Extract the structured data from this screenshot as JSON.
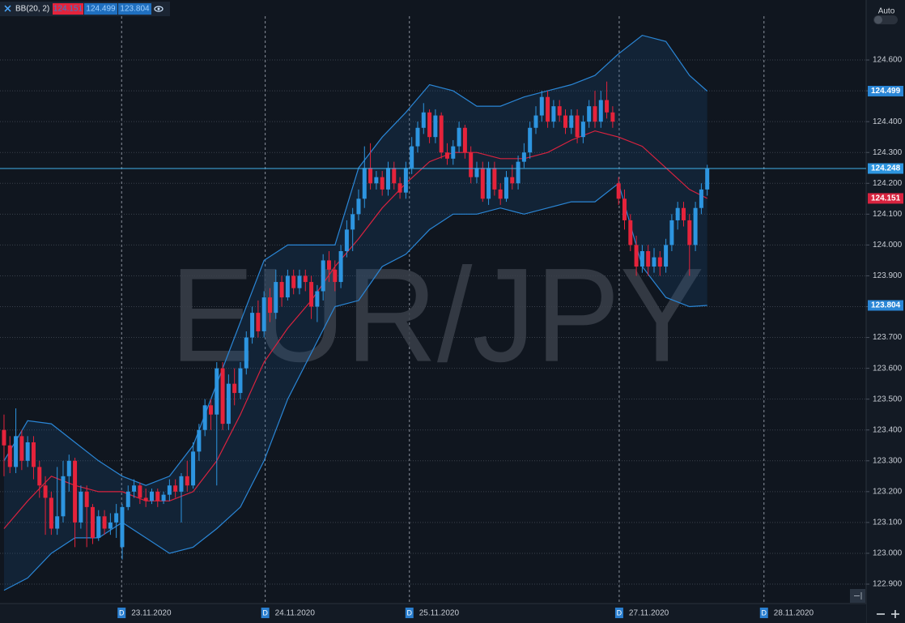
{
  "chart_data": {
    "type": "candlestick",
    "title": "EUR/JPY",
    "indicator": "BB(20, 2)",
    "toolbar_label": "Auto",
    "x_badge": "D",
    "up_color": "#2d95e0",
    "down_color": "#e5233b",
    "x": [
      0,
      1,
      2,
      3,
      4,
      5,
      6,
      7,
      8,
      9,
      10,
      11,
      12,
      13,
      14,
      15,
      16,
      17,
      18,
      19,
      20,
      21,
      22,
      23,
      24,
      25,
      26,
      27,
      28,
      29,
      30,
      31,
      32,
      33,
      34,
      35,
      36,
      37,
      38,
      39,
      40,
      41,
      42,
      43,
      44,
      45,
      46,
      47,
      48,
      49,
      50,
      51,
      52,
      53,
      54,
      55,
      56,
      57,
      58,
      59,
      60,
      61,
      62,
      63,
      64,
      65,
      66,
      67,
      68,
      69,
      70,
      71,
      72,
      73,
      74,
      75,
      76,
      77,
      78,
      79,
      80,
      81,
      82,
      83,
      84,
      85,
      86,
      87,
      88,
      89,
      90,
      91,
      92,
      93,
      94,
      95,
      96,
      97,
      98,
      99,
      100,
      101,
      102,
      103,
      104,
      105,
      106,
      107,
      108,
      109,
      110,
      111,
      112,
      113,
      114,
      115,
      116,
      117,
      118,
      119
    ],
    "open": [
      123.4,
      123.35,
      123.28,
      123.38,
      123.3,
      123.36,
      123.28,
      123.22,
      123.18,
      123.08,
      123.12,
      123.25,
      123.3,
      123.1,
      123.2,
      123.15,
      123.05,
      123.12,
      123.08,
      123.1,
      123.02,
      123.15,
      123.2,
      123.22,
      123.18,
      123.17,
      123.2,
      123.17,
      123.19,
      123.22,
      123.2,
      123.25,
      123.22,
      123.33,
      123.4,
      123.48,
      123.45,
      123.6,
      123.42,
      123.55,
      123.52,
      123.6,
      123.7,
      123.78,
      123.72,
      123.83,
      123.78,
      123.88,
      123.83,
      123.9,
      123.86,
      123.9,
      123.88,
      123.8,
      123.85,
      123.95,
      123.92,
      123.88,
      123.98,
      124.05,
      124.1,
      124.15,
      124.25,
      124.2,
      124.22,
      124.18,
      124.25,
      124.2,
      124.17,
      124.25,
      124.32,
      124.38,
      124.43,
      124.35,
      124.42,
      124.3,
      124.28,
      124.32,
      124.38,
      124.3,
      124.22,
      124.25,
      124.15,
      124.25,
      124.18,
      124.15,
      124.22,
      124.2,
      124.27,
      124.3,
      124.38,
      124.42,
      124.48,
      124.4,
      124.45,
      124.42,
      124.38,
      124.42,
      124.35,
      124.4,
      124.45,
      124.4,
      124.47,
      124.43,
      124.2,
      124.15,
      124.08,
      124.0,
      123.93,
      123.98,
      123.93,
      123.96,
      123.93,
      124.0,
      124.08,
      124.12,
      124.08,
      124.0,
      124.12,
      124.18
    ],
    "high": [
      123.45,
      123.38,
      123.47,
      123.4,
      123.38,
      123.38,
      123.3,
      123.25,
      123.2,
      123.28,
      123.3,
      123.32,
      123.31,
      123.22,
      123.22,
      123.16,
      123.14,
      123.14,
      123.13,
      123.16,
      123.16,
      123.22,
      123.24,
      123.23,
      123.21,
      123.21,
      123.21,
      123.2,
      123.24,
      123.24,
      123.26,
      123.3,
      123.36,
      123.42,
      123.5,
      123.5,
      123.62,
      123.62,
      123.58,
      123.6,
      123.62,
      123.72,
      123.8,
      123.82,
      123.85,
      123.86,
      123.92,
      123.9,
      123.92,
      123.92,
      123.92,
      123.92,
      123.9,
      123.87,
      123.97,
      123.98,
      123.95,
      124.0,
      124.08,
      124.12,
      124.18,
      124.32,
      124.33,
      124.24,
      124.24,
      124.27,
      124.27,
      124.22,
      124.27,
      124.35,
      124.4,
      124.46,
      124.44,
      124.44,
      124.43,
      124.33,
      124.34,
      124.4,
      124.39,
      124.32,
      124.27,
      124.27,
      124.27,
      124.27,
      124.2,
      124.24,
      124.26,
      124.29,
      124.33,
      124.4,
      124.45,
      124.5,
      124.5,
      124.47,
      124.47,
      124.44,
      124.44,
      124.44,
      124.42,
      124.47,
      124.5,
      124.5,
      124.53,
      124.45,
      124.22,
      124.18,
      124.1,
      124.03,
      124.0,
      124.0,
      123.99,
      123.98,
      124.02,
      124.1,
      124.14,
      124.14,
      124.1,
      124.14,
      124.2,
      124.26
    ],
    "low": [
      123.25,
      123.26,
      123.26,
      123.27,
      123.28,
      123.24,
      123.18,
      123.06,
      123.06,
      123.06,
      123.1,
      123.2,
      123.02,
      123.08,
      123.02,
      123.03,
      123.04,
      123.06,
      123.06,
      123.05,
      122.98,
      123.14,
      123.18,
      123.16,
      123.15,
      123.16,
      123.15,
      123.16,
      123.17,
      123.18,
      123.1,
      123.2,
      123.21,
      123.3,
      123.38,
      123.4,
      123.22,
      123.4,
      123.4,
      123.48,
      123.5,
      123.58,
      123.68,
      123.7,
      123.7,
      123.75,
      123.76,
      123.8,
      123.82,
      123.84,
      123.84,
      123.85,
      123.76,
      123.75,
      123.82,
      123.88,
      123.85,
      123.86,
      123.96,
      123.98,
      124.08,
      124.12,
      124.18,
      124.18,
      124.16,
      124.16,
      124.18,
      124.15,
      124.15,
      124.23,
      124.3,
      124.36,
      124.33,
      124.33,
      124.28,
      124.26,
      124.26,
      124.3,
      124.28,
      124.2,
      124.2,
      124.14,
      124.13,
      124.16,
      124.13,
      124.14,
      124.18,
      124.18,
      124.25,
      124.28,
      124.36,
      124.4,
      124.38,
      124.38,
      124.4,
      124.36,
      124.36,
      124.33,
      124.33,
      124.38,
      124.38,
      124.38,
      124.41,
      124.38,
      124.13,
      124.05,
      123.98,
      123.9,
      123.91,
      123.9,
      123.91,
      123.9,
      123.91,
      123.98,
      124.05,
      124.06,
      123.9,
      123.98,
      124.1,
      124.16
    ],
    "close": [
      123.35,
      123.28,
      123.38,
      123.3,
      123.36,
      123.28,
      123.22,
      123.18,
      123.08,
      123.12,
      123.25,
      123.3,
      123.1,
      123.2,
      123.15,
      123.05,
      123.12,
      123.08,
      123.1,
      123.13,
      123.15,
      123.2,
      123.22,
      123.18,
      123.17,
      123.2,
      123.17,
      123.19,
      123.22,
      123.2,
      123.25,
      123.22,
      123.33,
      123.4,
      123.48,
      123.45,
      123.6,
      123.42,
      123.55,
      123.52,
      123.6,
      123.7,
      123.78,
      123.72,
      123.83,
      123.78,
      123.88,
      123.83,
      123.9,
      123.86,
      123.9,
      123.88,
      123.8,
      123.85,
      123.95,
      123.92,
      123.88,
      123.98,
      124.05,
      124.1,
      124.15,
      124.25,
      124.2,
      124.22,
      124.18,
      124.25,
      124.2,
      124.17,
      124.25,
      124.32,
      124.38,
      124.43,
      124.35,
      124.42,
      124.3,
      124.28,
      124.32,
      124.38,
      124.3,
      124.22,
      124.25,
      124.15,
      124.25,
      124.18,
      124.15,
      124.22,
      124.2,
      124.27,
      124.3,
      124.38,
      124.42,
      124.48,
      124.4,
      124.45,
      124.42,
      124.38,
      124.42,
      124.35,
      124.4,
      124.45,
      124.4,
      124.47,
      124.43,
      124.4,
      124.15,
      124.08,
      124.0,
      123.93,
      123.98,
      123.93,
      123.96,
      123.93,
      124.0,
      124.08,
      124.12,
      124.08,
      124.0,
      124.12,
      124.18,
      124.248
    ],
    "series": [
      {
        "color": "#2a86d6",
        "x": [
          0,
          4,
          8,
          12,
          16,
          20,
          24,
          28,
          32,
          36,
          40,
          44,
          48,
          52,
          56,
          60,
          64,
          68,
          72,
          76,
          80,
          84,
          88,
          92,
          96,
          100,
          104,
          108,
          112,
          116,
          119
        ],
        "values": [
          123.3,
          123.43,
          123.42,
          123.36,
          123.3,
          123.25,
          123.22,
          123.25,
          123.35,
          123.55,
          123.75,
          123.95,
          124.0,
          124.0,
          124.0,
          124.25,
          124.35,
          124.43,
          124.52,
          124.5,
          124.45,
          124.45,
          124.48,
          124.5,
          124.52,
          124.55,
          124.62,
          124.68,
          124.66,
          124.55,
          124.499
        ]
      },
      {
        "color": "#d8233f",
        "x": [
          0,
          4,
          8,
          12,
          16,
          20,
          24,
          28,
          32,
          36,
          40,
          44,
          48,
          52,
          56,
          60,
          64,
          68,
          72,
          76,
          80,
          84,
          88,
          92,
          96,
          100,
          104,
          108,
          112,
          116,
          119
        ],
        "values": [
          123.08,
          123.17,
          123.25,
          123.22,
          123.2,
          123.2,
          123.17,
          123.17,
          123.2,
          123.3,
          123.45,
          123.62,
          123.73,
          123.82,
          123.93,
          124.02,
          124.12,
          124.2,
          124.27,
          124.3,
          124.3,
          124.28,
          124.28,
          124.3,
          124.34,
          124.37,
          124.35,
          124.32,
          124.25,
          124.18,
          124.151
        ]
      },
      {
        "color": "#2a86d6",
        "x": [
          0,
          4,
          8,
          12,
          16,
          20,
          24,
          28,
          32,
          36,
          40,
          44,
          48,
          52,
          56,
          60,
          64,
          68,
          72,
          76,
          80,
          84,
          88,
          92,
          96,
          100,
          104,
          108,
          112,
          116,
          119
        ],
        "values": [
          122.88,
          122.92,
          123.0,
          123.05,
          123.05,
          123.1,
          123.05,
          123.0,
          123.02,
          123.08,
          123.15,
          123.3,
          123.5,
          123.65,
          123.8,
          123.82,
          123.93,
          123.97,
          124.05,
          124.1,
          124.1,
          124.12,
          124.1,
          124.12,
          124.14,
          124.14,
          124.2,
          123.93,
          123.83,
          123.8,
          123.804
        ]
      }
    ],
    "xlim": [
      -0.68,
      145.89
    ],
    "xticks": [
      {
        "value": 19.9,
        "label": "23.11.2020"
      },
      {
        "value": 44.2,
        "label": "24.11.2020"
      },
      {
        "value": 68.6,
        "label": "25.11.2020"
      },
      {
        "value": 104.1,
        "label": "27.11.2020"
      },
      {
        "value": 128.6,
        "label": "28.11.2020"
      }
    ],
    "ylim": [
      122.837,
      124.742
    ],
    "yticks": [
      {
        "value": 122.9,
        "label": "122.900"
      },
      {
        "value": 123.0,
        "label": "123.000"
      },
      {
        "value": 123.1,
        "label": "123.100"
      },
      {
        "value": 123.2,
        "label": "123.200"
      },
      {
        "value": 123.3,
        "label": "123.300"
      },
      {
        "value": 123.4,
        "label": "123.400"
      },
      {
        "value": 123.5,
        "label": "123.500"
      },
      {
        "value": 123.6,
        "label": "123.600"
      },
      {
        "value": 123.7,
        "label": "123.700"
      },
      {
        "value": 123.8,
        "label": "123.800"
      },
      {
        "value": 123.9,
        "label": "123.900"
      },
      {
        "value": 124.0,
        "label": "124.000"
      },
      {
        "value": 124.1,
        "label": "124.100"
      },
      {
        "value": 124.2,
        "label": "124.200"
      },
      {
        "value": 124.3,
        "label": "124.300"
      },
      {
        "value": 124.4,
        "label": "124.400"
      },
      {
        "value": 124.5,
        "label": "124.500"
      },
      {
        "value": 124.6,
        "label": "124.600"
      }
    ],
    "grid": true
  }
}
